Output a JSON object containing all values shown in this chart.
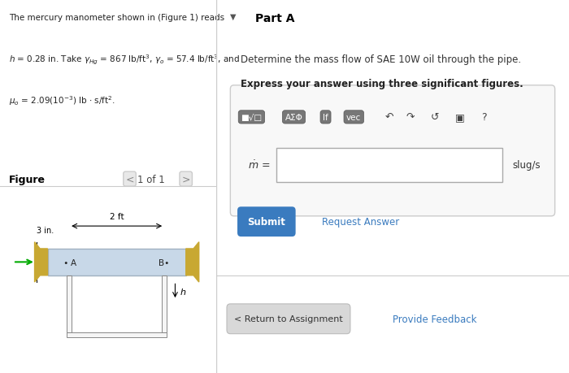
{
  "bg_color": "#ffffff",
  "left_panel_bg": "#e8f0f8",
  "figure_label": "Figure",
  "figure_nav": "1 of 1",
  "part_a_label": "Part A",
  "question_text": "Determine the mass flow of SAE 10W oil through the pipe.",
  "bold_text": "Express your answer using three significant figures.",
  "unit_label": "slug/s",
  "submit_label": "Submit",
  "request_answer_label": "Request Answer",
  "return_label": "< Return to Assignment",
  "feedback_label": "Provide Feedback",
  "pipe_color": "#c8d8e8",
  "pipe_border_color": "#a0b0c0",
  "fitting_color": "#c8a832",
  "dim_2ft": "2 ft",
  "dim_3in": "3 in.",
  "arrow_color": "#00aa00",
  "submit_bg": "#3a7bbf",
  "submit_text_color": "#ffffff",
  "link_color": "#3a7bbf",
  "separator_color": "#cccccc"
}
